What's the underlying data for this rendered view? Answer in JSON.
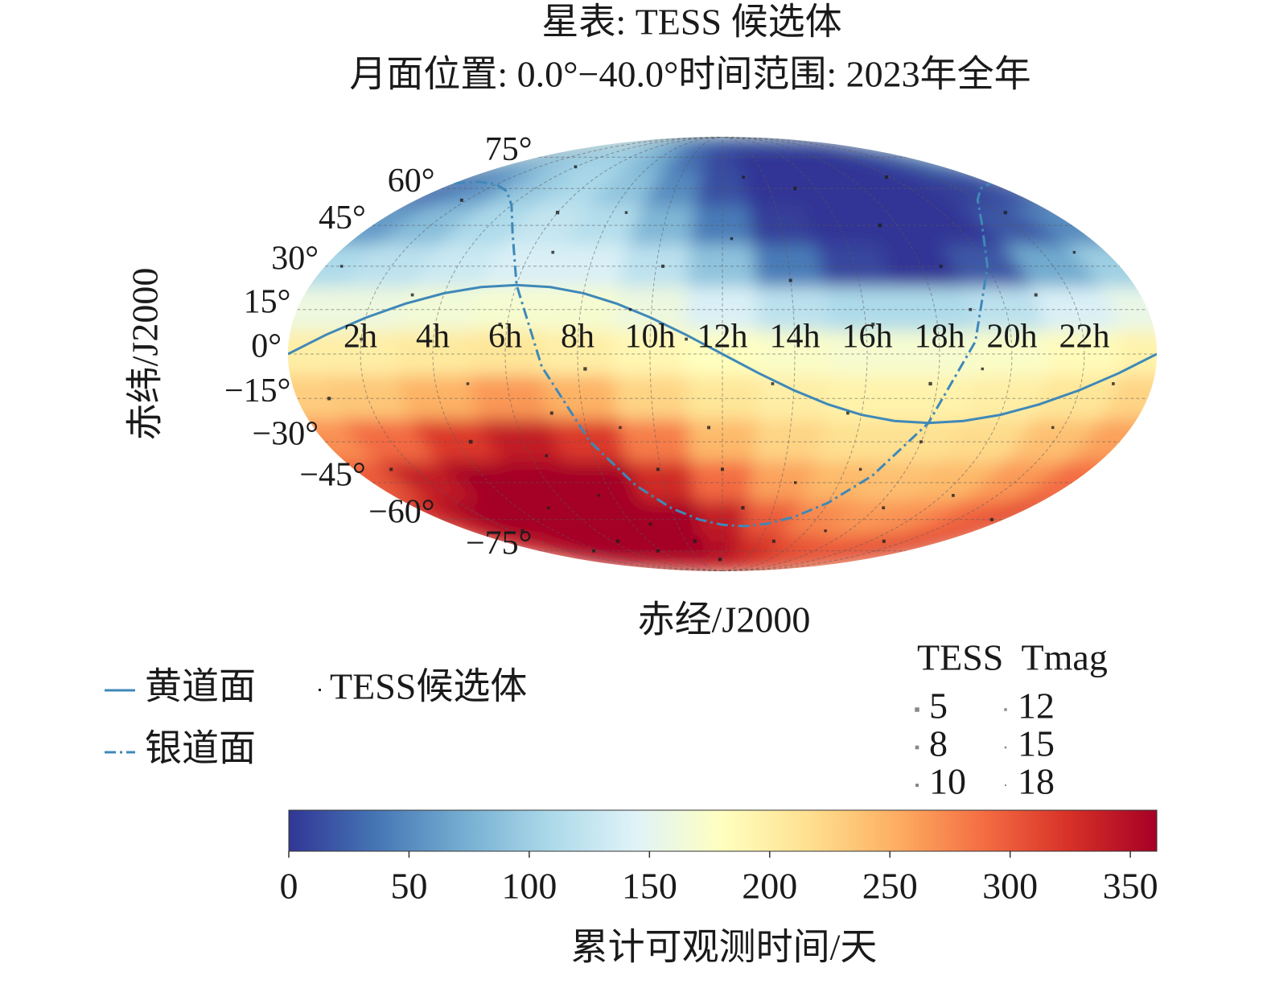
{
  "chart_data": {
    "type": "skymap",
    "projection": "mollweide",
    "title": "星表: TESS 候选体",
    "subtitle": "月面位置: 0.0°−40.0°时间范围: 2023年全年",
    "x_label": "赤经/J2000",
    "y_label": "赤纬/J2000",
    "xlim": [
      0,
      24
    ],
    "ylim": [
      -90,
      90
    ],
    "grid": true,
    "xticks": [
      {
        "value": 2,
        "label": "2h"
      },
      {
        "value": 4,
        "label": "4h"
      },
      {
        "value": 6,
        "label": "6h"
      },
      {
        "value": 8,
        "label": "8h"
      },
      {
        "value": 10,
        "label": "10h"
      },
      {
        "value": 12,
        "label": "12h"
      },
      {
        "value": 14,
        "label": "14h"
      },
      {
        "value": 16,
        "label": "16h"
      },
      {
        "value": 18,
        "label": "18h"
      },
      {
        "value": 20,
        "label": "20h"
      },
      {
        "value": 22,
        "label": "22h"
      }
    ],
    "yticks": [
      {
        "value": 75,
        "label": "75°"
      },
      {
        "value": 60,
        "label": "60°"
      },
      {
        "value": 45,
        "label": "45°"
      },
      {
        "value": 30,
        "label": "30°"
      },
      {
        "value": 15,
        "label": "15°"
      },
      {
        "value": 0,
        "label": "0°"
      },
      {
        "value": -15,
        "label": "−15°"
      },
      {
        "value": -30,
        "label": "−30°"
      },
      {
        "value": -45,
        "label": "−45°"
      },
      {
        "value": -60,
        "label": "−60°"
      },
      {
        "value": -75,
        "label": "−75°"
      }
    ],
    "heatmap": {
      "label": "累计可观测时间/天",
      "ra": [
        0,
        2,
        4,
        6,
        8,
        10,
        12,
        14,
        16,
        18,
        20,
        22,
        24
      ],
      "dec": [
        90,
        75,
        60,
        45,
        30,
        15,
        0,
        -15,
        -30,
        -45,
        -60,
        -75,
        -90
      ],
      "values": [
        [
          40,
          40,
          40,
          40,
          40,
          40,
          40,
          40,
          40,
          40,
          40,
          40,
          40
        ],
        [
          60,
          90,
          105,
          100,
          70,
          30,
          10,
          0,
          0,
          0,
          0,
          10,
          40
        ],
        [
          30,
          60,
          95,
          110,
          90,
          50,
          15,
          0,
          0,
          0,
          0,
          5,
          20
        ],
        [
          60,
          85,
          110,
          125,
          115,
          80,
          40,
          5,
          0,
          0,
          0,
          20,
          50
        ],
        [
          110,
          120,
          130,
          140,
          140,
          120,
          90,
          40,
          10,
          0,
          20,
          70,
          100
        ],
        [
          160,
          160,
          165,
          170,
          170,
          160,
          140,
          120,
          110,
          110,
          120,
          140,
          155
        ],
        [
          200,
          200,
          205,
          210,
          200,
          190,
          180,
          175,
          170,
          170,
          175,
          185,
          195
        ],
        [
          230,
          235,
          250,
          265,
          250,
          225,
          210,
          200,
          195,
          195,
          200,
          210,
          225
        ],
        [
          270,
          290,
          320,
          340,
          320,
          280,
          245,
          225,
          215,
          215,
          220,
          240,
          260
        ],
        [
          300,
          340,
          361,
          361,
          361,
          330,
          290,
          260,
          245,
          240,
          245,
          265,
          290
        ],
        [
          330,
          361,
          361,
          361,
          361,
          361,
          340,
          300,
          275,
          265,
          270,
          290,
          310
        ],
        [
          330,
          350,
          361,
          361,
          361,
          361,
          350,
          330,
          310,
          300,
          300,
          310,
          320
        ],
        [
          330,
          330,
          330,
          330,
          330,
          330,
          330,
          330,
          330,
          330,
          330,
          330,
          330
        ]
      ],
      "colormap": [
        "#313695",
        "#4575b4",
        "#74add1",
        "#abd9e9",
        "#e0f3f8",
        "#ffffbf",
        "#fee090",
        "#fdae61",
        "#f46d43",
        "#d73027",
        "#a50026"
      ],
      "clim": [
        0,
        361
      ],
      "cticks": [
        0,
        50,
        100,
        150,
        200,
        250,
        300,
        350
      ]
    },
    "lines": [
      {
        "name": "黄道面",
        "color": "#3f88b8",
        "style": "solid",
        "ra": [
          0,
          1,
          2,
          3,
          4,
          5,
          6,
          7,
          8,
          9,
          10,
          11,
          12,
          13,
          14,
          15,
          16,
          17,
          18,
          19,
          20,
          21,
          22,
          23,
          24
        ],
        "dec": [
          0,
          6.4,
          12.2,
          17.0,
          20.6,
          22.7,
          23.4,
          22.7,
          20.6,
          17.0,
          12.2,
          6.4,
          0,
          -6.4,
          -12.2,
          -17.0,
          -20.6,
          -22.7,
          -23.4,
          -22.7,
          -20.6,
          -17.0,
          -12.2,
          -6.4,
          0
        ]
      },
      {
        "name": "银道面",
        "color": "#3f88b8",
        "style": "dashdot",
        "ra": [
          0,
          1,
          2,
          3,
          4,
          5,
          6,
          7,
          8,
          9,
          10,
          11,
          12,
          13,
          14,
          15,
          16,
          17,
          18,
          19,
          20,
          21,
          22,
          23,
          24
        ],
        "dec": [
          62.3,
          62.9,
          61.8,
          58.8,
          53.0,
          42.4,
          23.5,
          -4.2,
          -29.9,
          -46.1,
          -55.1,
          -59.9,
          -62.3,
          -62.9,
          -61.8,
          -58.8,
          -53.0,
          -42.4,
          -23.5,
          4.2,
          29.9,
          46.1,
          55.1,
          59.9,
          62.3
        ]
      }
    ],
    "points": {
      "name": "TESS候选体",
      "color": "#1e1e1e",
      "ra": [
        1.2,
        2.5,
        3.1,
        4.4,
        5.2,
        5.8,
        6.3,
        6.7,
        7.1,
        7.5,
        8.2,
        8.8,
        9.4,
        9.9,
        10.5,
        11.0,
        11.6,
        12.3,
        12.8,
        13.4,
        14.0,
        14.5,
        15.1,
        15.6,
        16.2,
        16.9,
        17.4,
        18.0,
        18.6,
        19.2,
        19.8,
        20.4,
        21.0,
        21.7,
        22.3,
        22.9,
        23.5,
        0.5,
        0.9,
        2.0,
        3.6,
        4.9,
        6.0,
        6.5,
        7.8,
        9.0,
        10.2,
        11.8,
        13.0,
        14.8,
        16.5,
        17.8,
        19.0,
        20.8,
        23.0,
        1.8,
        4.0,
        8.5,
        12.0,
        18.3
      ],
      "dec": [
        -40,
        -65,
        20,
        -30,
        -55,
        10,
        -70,
        35,
        -20,
        -50,
        -5,
        -62,
        15,
        -40,
        -70,
        5,
        -25,
        40,
        -55,
        -10,
        25,
        -45,
        60,
        -20,
        10,
        -65,
        45,
        -30,
        30,
        -5,
        65,
        -50,
        20,
        -25,
        50,
        -10,
        -60,
        30,
        -15,
        5,
        -75,
        -10,
        50,
        -35,
        -75,
        -25,
        30,
        -80,
        65,
        -70,
        -40,
        -10,
        15,
        -70,
        35,
        55,
        70,
        50,
        -40,
        -55
      ],
      "tmag": [
        10,
        9,
        11,
        8,
        12,
        10,
        9,
        11,
        10,
        13,
        9,
        11,
        12,
        10,
        8,
        11,
        10,
        12,
        9,
        11,
        10,
        12,
        9,
        11,
        10,
        12,
        8,
        11,
        10,
        12,
        9,
        11,
        10,
        12,
        9,
        11,
        10,
        12,
        9,
        11,
        10,
        12,
        9,
        11,
        10,
        12,
        10,
        9,
        11,
        10,
        12,
        9,
        11,
        10,
        12,
        10,
        11,
        12,
        10,
        11
      ]
    },
    "size_legend": {
      "title": "TESS  Tmag",
      "values": [
        5,
        8,
        10,
        12,
        15,
        18
      ]
    }
  }
}
